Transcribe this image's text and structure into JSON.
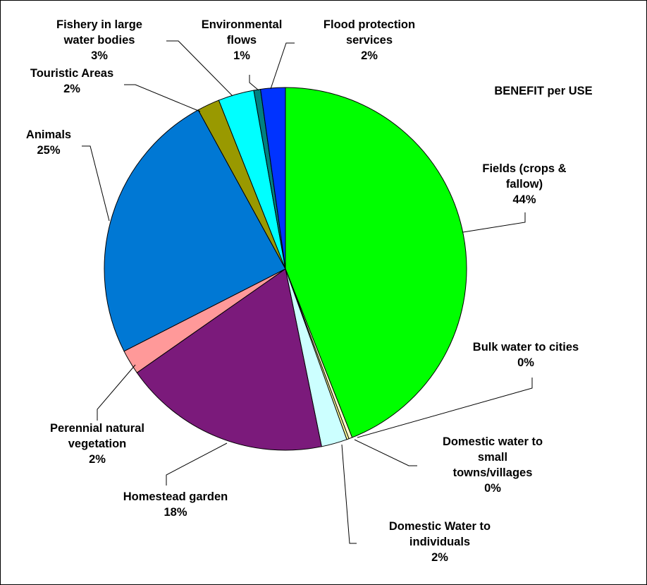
{
  "chart_data": {
    "type": "pie",
    "title": "BENEFIT per USE",
    "start_angle_deg": 0,
    "direction": "clockwise",
    "slices": [
      {
        "name": "Fields (crops & fallow)",
        "label_lines": [
          "Fields (crops &",
          "fallow)"
        ],
        "percent_label": "44%",
        "value": 44.0,
        "color": "#00ff00"
      },
      {
        "name": "Bulk water to cities",
        "label_lines": [
          "Bulk water to cities"
        ],
        "percent_label": "0%",
        "value": 0.3,
        "color": "#ffffcc"
      },
      {
        "name": "Domestic water to small towns/villages",
        "label_lines": [
          "Domestic water to",
          "small",
          "towns/villages"
        ],
        "percent_label": "0%",
        "value": 0.2,
        "color": "#ffff99"
      },
      {
        "name": "Domestic Water to individuals",
        "label_lines": [
          "Domestic Water to",
          "individuals"
        ],
        "percent_label": "2%",
        "value": 2.3,
        "color": "#ccffff"
      },
      {
        "name": "Homestead garden",
        "label_lines": [
          "Homestead garden"
        ],
        "percent_label": "18%",
        "value": 18.5,
        "color": "#7b1a7b"
      },
      {
        "name": "Perennial natural vegetation",
        "label_lines": [
          "Perennial natural",
          "vegetation"
        ],
        "percent_label": "2%",
        "value": 2.2,
        "color": "#ff9999"
      },
      {
        "name": "Animals",
        "label_lines": [
          "Animals"
        ],
        "percent_label": "25%",
        "value": 24.5,
        "color": "#0078d4"
      },
      {
        "name": "Touristic Areas",
        "label_lines": [
          "Touristic Areas"
        ],
        "percent_label": "2%",
        "value": 2.0,
        "color": "#999900"
      },
      {
        "name": "Fishery in large water bodies",
        "label_lines": [
          "Fishery in large",
          "water bodies"
        ],
        "percent_label": "3%",
        "value": 3.2,
        "color": "#00ffff"
      },
      {
        "name": "Environmental flows",
        "label_lines": [
          "Environmental",
          "flows"
        ],
        "percent_label": "1%",
        "value": 0.6,
        "color": "#008080"
      },
      {
        "name": "Flood protection services",
        "label_lines": [
          "Flood protection",
          "services"
        ],
        "percent_label": "2%",
        "value": 2.2,
        "color": "#0033ff"
      }
    ]
  }
}
